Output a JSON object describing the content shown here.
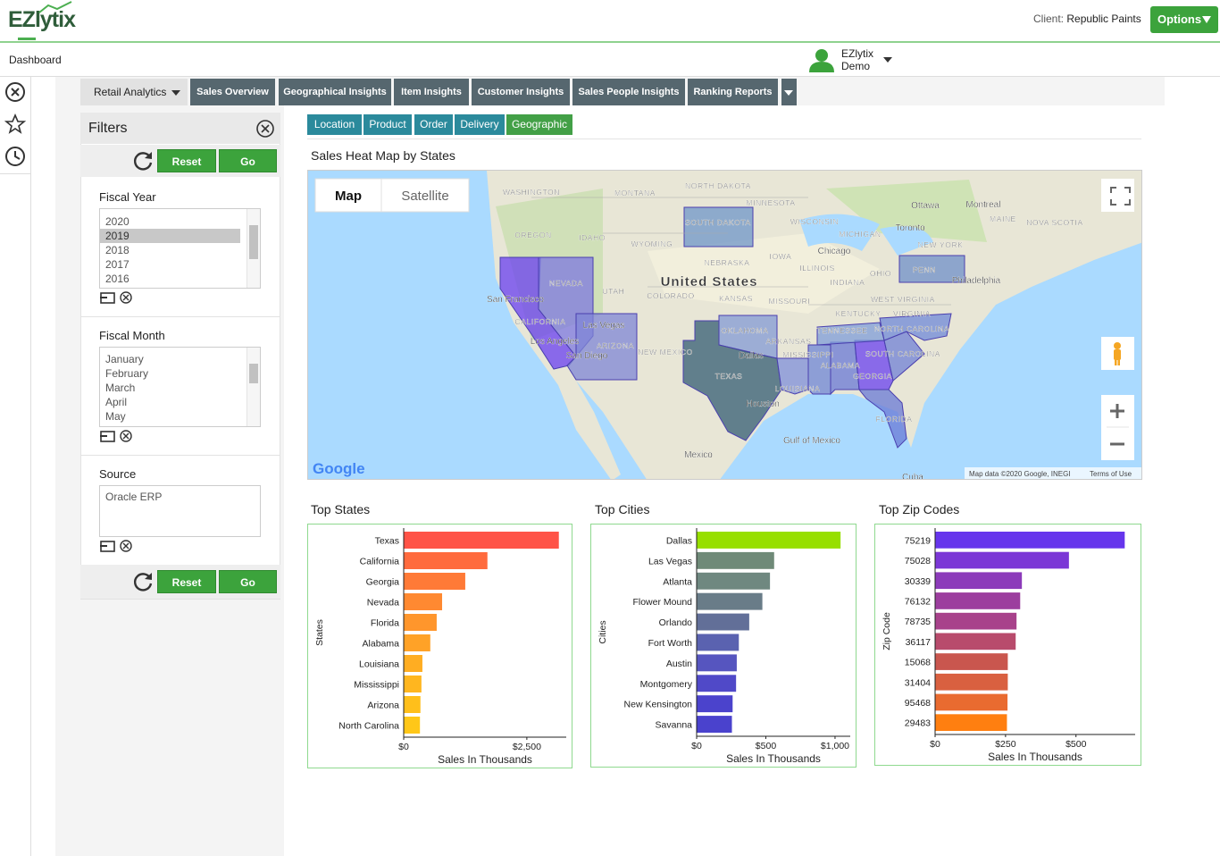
{
  "header": {
    "logo": "EZlytix",
    "client_label": "Client:",
    "client": "Republic Paints",
    "options": "Options"
  },
  "nav": {
    "breadcrumb": "Dashboard",
    "user_name": "EZlytix",
    "user_role": "Demo"
  },
  "tabs": [
    "Retail Analytics",
    "Sales Overview",
    "Geographical Insights",
    "Item Insights",
    "Customer Insights",
    "Sales People Insights",
    "Ranking Reports"
  ],
  "filters": {
    "title": "Filters",
    "reset": "Reset",
    "go": "Go",
    "groups": [
      {
        "label": "Fiscal Year",
        "options": [
          "2020",
          "2019",
          "2018",
          "2017",
          "2016"
        ]
      },
      {
        "label": "Fiscal Month",
        "options": [
          "January",
          "February",
          "March",
          "April",
          "May"
        ]
      },
      {
        "label": "Source",
        "options": [
          "Oracle ERP"
        ]
      }
    ]
  },
  "subtabs": [
    "Location",
    "Product",
    "Order",
    "Delivery",
    "Geographic"
  ],
  "map": {
    "title": "Sales Heat Map by States",
    "buttons": [
      "Map",
      "Satellite"
    ],
    "logo": "Google",
    "attribution": "Map data ©2020 Google, INEGI",
    "terms": "Terms of Use",
    "labels": [
      "WASHINGTON",
      "MONTANA",
      "NORTH DAKOTA",
      "MINNESOTA",
      "OREGON",
      "IDAHO",
      "WYOMING",
      "SOUTH DAKOTA",
      "WISCONSIN",
      "MICHIGAN",
      "Ottawa",
      "Montreal",
      "MAINE",
      "NOVA SCOTIA",
      "Toronto",
      "NEW YORK",
      "Chicago",
      "IOWA",
      "NEBRASKA",
      "ILLINOIS",
      "OHIO",
      "PENN",
      "NEVADA",
      "UTAH",
      "United States",
      "COLORADO",
      "KANSAS",
      "MISSOURI",
      "INDIANA",
      "Philadelphia",
      "WEST VIRGINIA",
      "VIRGINIA",
      "KENTUCKY",
      "San Francisco",
      "CALIFORNIA",
      "Las Vegas",
      "TENNESSEE",
      "NORTH CAROLINA",
      "OKLAHOMA",
      "ARKANSAS",
      "Los Angeles",
      "ARIZONA",
      "NEW MEXICO",
      "MISSISSIPPI",
      "ALABAMA",
      "SOUTH CAROLINA",
      "GEORGIA",
      "San Diego",
      "Dallas",
      "TEXAS",
      "LOUISIANA",
      "Houston",
      "FLORIDA",
      "Gulf of Mexico",
      "Mexico",
      "Cuba"
    ]
  },
  "chart_data": [
    {
      "type": "hbar",
      "title": "Top States",
      "x_label": "Sales In Thousands",
      "y_label": "States",
      "categories": [
        "Texas",
        "California",
        "Georgia",
        "Nevada",
        "Florida",
        "Alabama",
        "Louisiana",
        "Mississippi",
        "Arizona",
        "North Carolina"
      ],
      "values": [
        3150,
        1700,
        1250,
        780,
        670,
        540,
        380,
        360,
        340,
        330
      ],
      "colors": [
        "#ff5347",
        "#ff6b3e",
        "#ff7a37",
        "#ff8931",
        "#ff962c",
        "#ffa227",
        "#ffad22",
        "#ffb61f",
        "#ffbf1b",
        "#ffc718"
      ],
      "xlim": [
        0,
        3300
      ],
      "xticks": [
        {
          "value": 0,
          "label": "$0"
        },
        {
          "value": 2500,
          "label": "$2,500"
        }
      ]
    },
    {
      "type": "hbar",
      "title": "Top Cities",
      "x_label": "Sales In Thousands",
      "y_label": "Cities",
      "categories": [
        "Dallas",
        "Las Vegas",
        "Atlanta",
        "Flower Mound",
        "Orlando",
        "Fort Worth",
        "Austin",
        "Montgomery",
        "New Kensington",
        "Savanna"
      ],
      "values": [
        1040,
        560,
        530,
        475,
        380,
        305,
        290,
        285,
        260,
        255
      ],
      "colors": [
        "#97df00",
        "#6f8a78",
        "#6f8880",
        "#697c88",
        "#626f98",
        "#5a62b0",
        "#5655bf",
        "#5049c8",
        "#4b43cc",
        "#4a42cd"
      ],
      "xlim": [
        0,
        1110
      ],
      "xticks": [
        {
          "value": 0,
          "label": "$0"
        },
        {
          "value": 500,
          "label": "$500"
        },
        {
          "value": 1000,
          "label": "$1,000"
        }
      ]
    },
    {
      "type": "hbar",
      "title": "Top Zip Codes",
      "x_label": "Sales In Thousands",
      "y_label": "Zip Code",
      "categories": [
        "75219",
        "75028",
        "30339",
        "76132",
        "78735",
        "36117",
        "15068",
        "31404",
        "95468",
        "29483"
      ],
      "values": [
        673,
        475,
        308,
        302,
        289,
        286,
        258,
        258,
        257,
        255
      ],
      "colors": [
        "#6635ec",
        "#7b37d6",
        "#8c3bba",
        "#9c3e9e",
        "#a8428b",
        "#b84b6c",
        "#c9564e",
        "#d96040",
        "#e96b30",
        "#ff7f10"
      ],
      "xlim": [
        0,
        710
      ],
      "xticks": [
        {
          "value": 0,
          "label": "$0"
        },
        {
          "value": 250,
          "label": "$250"
        },
        {
          "value": 500,
          "label": "$500"
        }
      ]
    }
  ]
}
